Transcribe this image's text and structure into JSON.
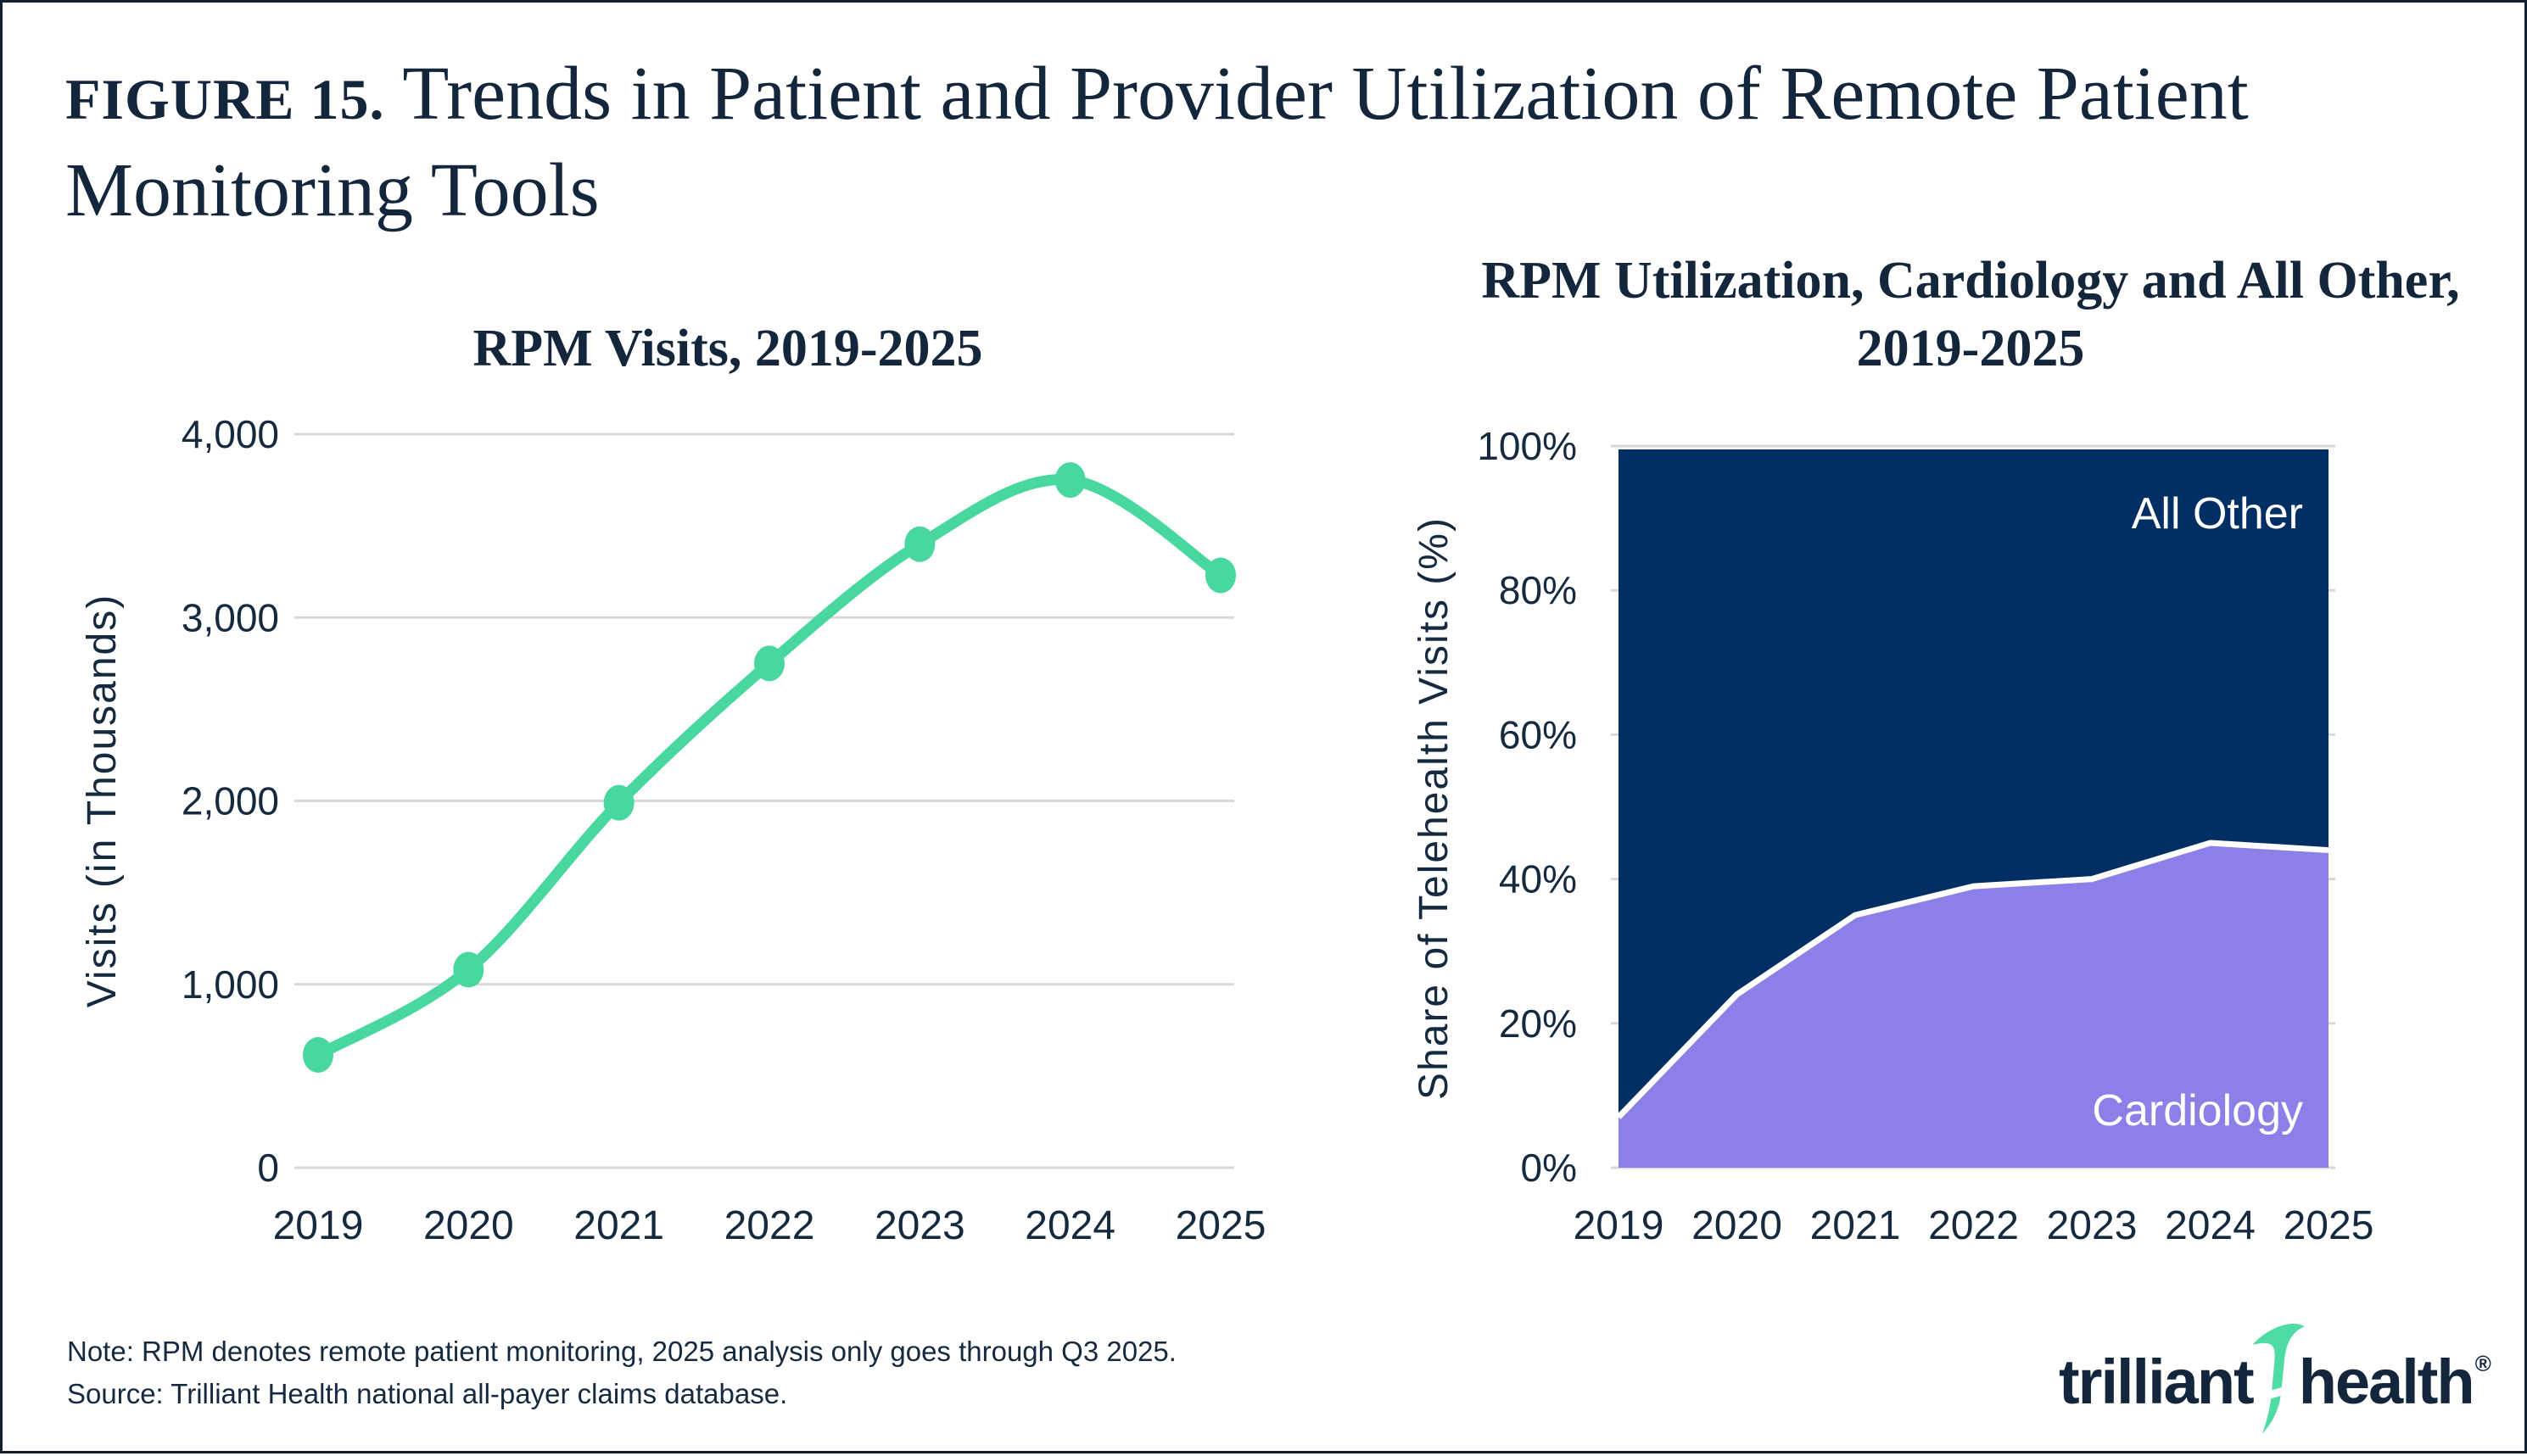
{
  "figure": {
    "label": "FIGURE 15.",
    "title_rest": " Trends in Patient and Provider Utilization of Remote Patient Monitoring Tools"
  },
  "note": {
    "line1": "Note: RPM denotes remote patient monitoring, 2025 analysis only goes through Q3 2025.",
    "line2": "Source: Trilliant Health national all-payer claims database."
  },
  "logo": {
    "word1": "trilliant",
    "word2": "health",
    "reg": "®"
  },
  "colors": {
    "green": "#48D79E",
    "navy": "#012F63",
    "purple": "#8B80E8",
    "text": "#15293F",
    "grid": "#D8D8D8",
    "white": "#FFFFFF",
    "logo_navy": "#13263C",
    "logo_green": "#4FDCA4"
  },
  "chart_data": [
    {
      "type": "line",
      "title": "RPM Visits, 2019-2025",
      "categories": [
        "2019",
        "2020",
        "2021",
        "2022",
        "2023",
        "2024",
        "2025"
      ],
      "values": [
        615,
        1080,
        1990,
        2750,
        3400,
        3750,
        3230
      ],
      "ylabel": "Visits (in Thousands)",
      "xlabel": "",
      "ylim": [
        0,
        4000
      ],
      "yticks": [
        0,
        1000,
        2000,
        3000,
        4000
      ],
      "ytick_labels": [
        "0",
        "1,000",
        "2,000",
        "3,000",
        "4,000"
      ],
      "line_color": "#48D79E",
      "grid": true,
      "legend_position": "none"
    },
    {
      "type": "area",
      "title_line1": "RPM Utilization, Cardiology and All Other,",
      "title_line2": "2019-2025",
      "categories": [
        "2019",
        "2020",
        "2021",
        "2022",
        "2023",
        "2024",
        "2025"
      ],
      "series": [
        {
          "name": "Cardiology",
          "values": [
            7,
            24,
            35,
            39,
            40,
            45,
            44
          ],
          "color": "#8B80E8"
        },
        {
          "name": "All Other",
          "values": [
            93,
            76,
            65,
            61,
            60,
            55,
            56
          ],
          "color": "#012F63"
        }
      ],
      "stacked_to": 100,
      "ylabel": "Share of Telehealth Visits (%)",
      "xlabel": "",
      "ylim": [
        0,
        100
      ],
      "yticks": [
        0,
        20,
        40,
        60,
        80,
        100
      ],
      "ytick_labels": [
        "0%",
        "20%",
        "40%",
        "60%",
        "80%",
        "100%"
      ],
      "boundary_line_color": "#FFFFFF",
      "grid": true,
      "legend_position": "inside-labels"
    }
  ]
}
